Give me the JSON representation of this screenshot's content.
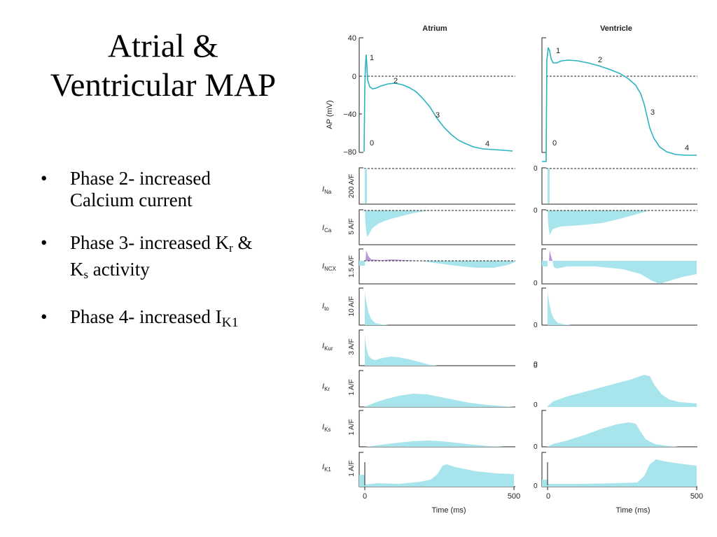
{
  "slide": {
    "title_line1": "Atrial &",
    "title_line2": "Ventricular MAP",
    "bullets": [
      {
        "pre": "Phase 2- increased",
        "line2": "Calcium current"
      },
      {
        "pre": "Phase 3- increased K",
        "sub1": "r",
        "mid": " &",
        "line2_pre": "K",
        "sub2": "s",
        "line2_post": " activity"
      },
      {
        "pre": "Phase 4- increased I",
        "sub1": "K1"
      }
    ]
  },
  "figure": {
    "panels": [
      {
        "title": "Atrium",
        "time_axis_label": "Time (ms)",
        "time_ticks": [
          "0",
          "500"
        ]
      },
      {
        "title": "Ventricle",
        "time_axis_label": "Time (ms)",
        "time_ticks": [
          "0",
          "500"
        ]
      }
    ],
    "ap": {
      "ylabel": "AP (mV)",
      "yticks": [
        "40",
        "0",
        "−40",
        "−80"
      ],
      "atrium_phase_labels": [
        "0",
        "1",
        "2",
        "3",
        "4"
      ],
      "ventricle_phase_labels": [
        "0",
        "1",
        "2",
        "3",
        "4"
      ]
    },
    "currents": [
      {
        "name": "I",
        "sub": "Na",
        "scale": "200 A/F"
      },
      {
        "name": "I",
        "sub": "Ca",
        "scale": "5 A/F"
      },
      {
        "name": "I",
        "sub": "NCX",
        "scale": "1.5 A/F"
      },
      {
        "name": "I",
        "sub": "to",
        "scale": "10 A/F"
      },
      {
        "name": "I",
        "sub": "Kur",
        "scale": "3 A/F"
      },
      {
        "name": "I",
        "sub": "Kr",
        "scale": "1 A/F"
      },
      {
        "name": "I",
        "sub": "Ks",
        "scale": "1 A/F"
      },
      {
        "name": "I",
        "sub": "K1",
        "scale": "1 A/F"
      }
    ],
    "zero_label": "0",
    "colors": {
      "trace": "#2bb3c0",
      "fill": "#a8e4ec",
      "ncx_outward": "#b79ad6",
      "axis": "#222222"
    }
  }
}
